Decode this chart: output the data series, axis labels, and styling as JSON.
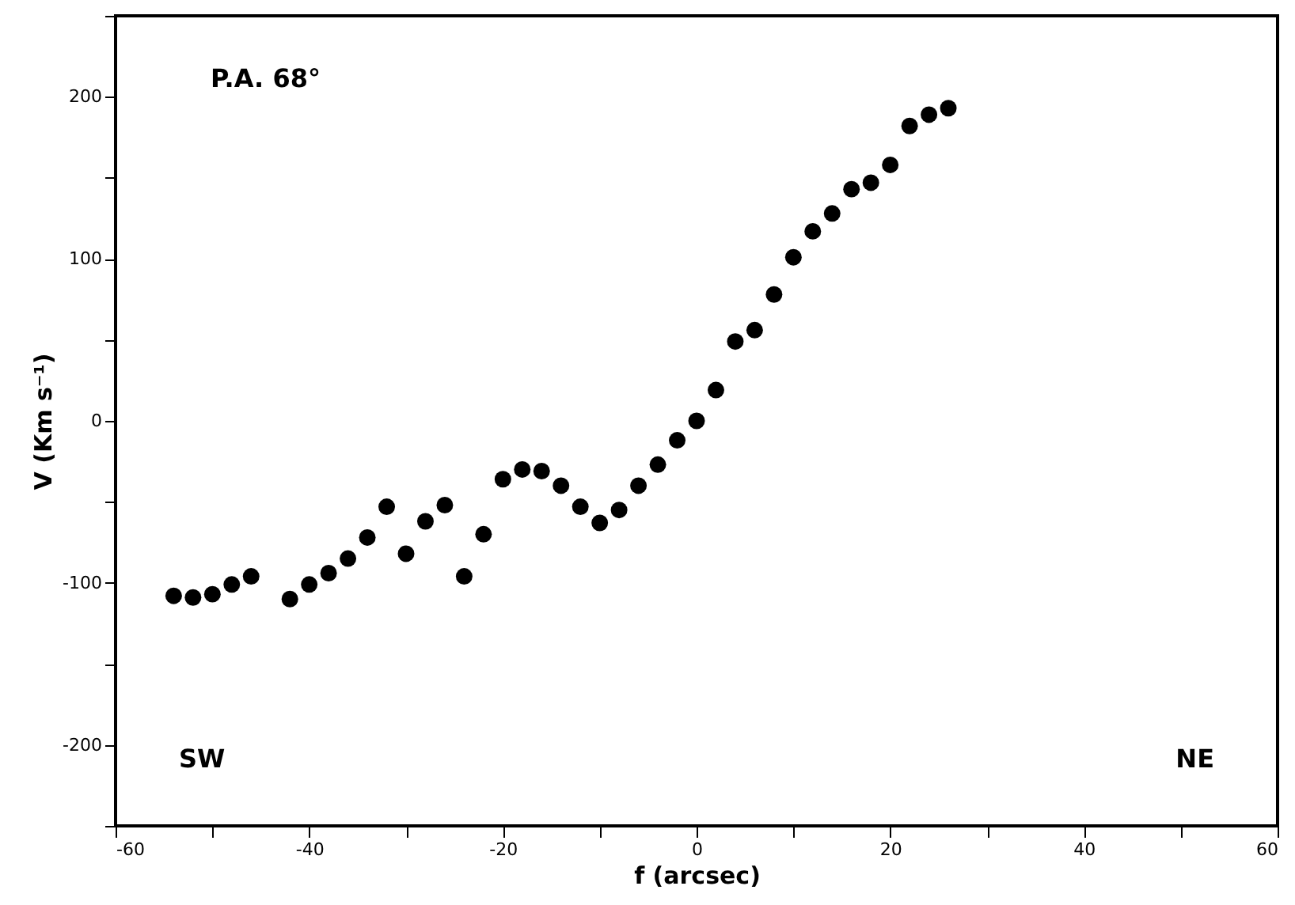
{
  "chart_data": {
    "type": "scatter",
    "xlabel": "f (arcsec)",
    "ylabel": "V (Km s⁻¹)",
    "annotations": [
      "P.A. 68°",
      "SW",
      "NE"
    ],
    "x": [
      -54,
      -52,
      -50,
      -48,
      -46,
      -42,
      -40,
      -38,
      -36,
      -34,
      -32,
      -30,
      -28,
      -26,
      -24,
      -22,
      -20,
      -18,
      -16,
      -14,
      -12,
      -10,
      -8,
      -6,
      -4,
      -2,
      0,
      2,
      4,
      6,
      8,
      10,
      12,
      14,
      16,
      18,
      20,
      22,
      24,
      26
    ],
    "series": [
      {
        "color": "#000000",
        "values": [
          -108,
          -109,
          -107,
          -101,
          -96,
          -110,
          -101,
          -94,
          -85,
          -72,
          -53,
          -82,
          -62,
          -52,
          -96,
          -70,
          -36,
          -30,
          -31,
          -40,
          -53,
          -63,
          -55,
          -40,
          -27,
          -12,
          0,
          19,
          49,
          56,
          78,
          101,
          117,
          128,
          143,
          147,
          158,
          182,
          189,
          193
        ]
      }
    ],
    "xlim": [
      -60,
      60
    ],
    "ylim": [
      -250,
      250
    ],
    "xticks": [
      -60,
      {
        "value": -50,
        "label": null
      },
      -40,
      {
        "value": -30,
        "label": null
      },
      -20,
      {
        "value": -10,
        "label": null
      },
      0,
      {
        "value": 10,
        "label": null
      },
      20,
      {
        "value": 30,
        "label": null
      },
      40,
      {
        "value": 50,
        "label": null
      },
      60
    ],
    "yticks": [
      {
        "value": -250,
        "label": null
      },
      -200,
      {
        "value": -150,
        "label": null
      },
      -100,
      {
        "value": -50,
        "label": null
      },
      0,
      {
        "value": 50,
        "label": null
      },
      100,
      {
        "value": 150,
        "label": null
      },
      200,
      {
        "value": 250,
        "label": null
      }
    ],
    "grid": false,
    "marker": "circle"
  }
}
